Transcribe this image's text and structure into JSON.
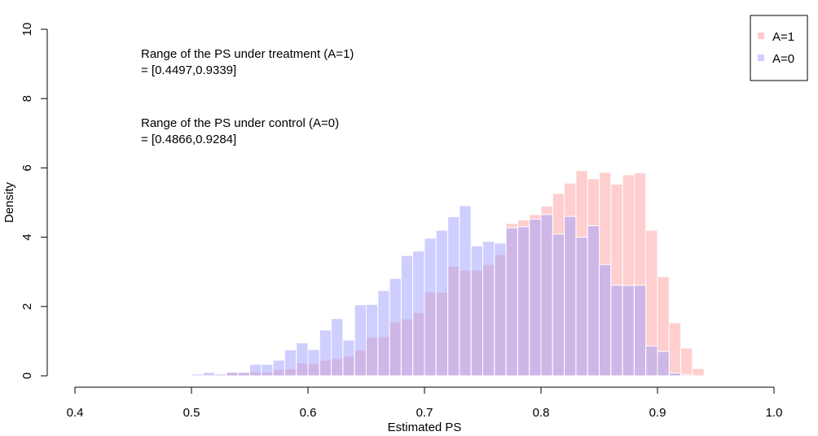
{
  "chart_data": {
    "type": "bar",
    "title": "",
    "xlabel": "Estimated PS",
    "ylabel": "Density",
    "xlim": [
      0.4,
      1.0
    ],
    "ylim": [
      0,
      10
    ],
    "x_ticks": [
      "0.4",
      "0.5",
      "0.6",
      "0.7",
      "0.8",
      "0.9",
      "1.0"
    ],
    "x_tick_values": [
      0.4,
      0.5,
      0.6,
      0.7,
      0.8,
      0.9,
      1.0
    ],
    "y_ticks": [
      "0",
      "2",
      "4",
      "6",
      "8",
      "10"
    ],
    "y_tick_values": [
      0,
      2,
      4,
      6,
      8,
      10
    ],
    "grid": false,
    "bin_width": 0.01,
    "bin_starts": [
      0.48,
      0.49,
      0.5,
      0.51,
      0.52,
      0.53,
      0.54,
      0.55,
      0.56,
      0.57,
      0.58,
      0.59,
      0.6,
      0.61,
      0.62,
      0.63,
      0.64,
      0.65,
      0.66,
      0.67,
      0.68,
      0.69,
      0.7,
      0.71,
      0.72,
      0.73,
      0.74,
      0.75,
      0.76,
      0.77,
      0.78,
      0.79,
      0.8,
      0.81,
      0.82,
      0.83,
      0.84,
      0.85,
      0.86,
      0.87,
      0.88,
      0.89,
      0.9,
      0.91,
      0.92,
      0.93
    ],
    "series": [
      {
        "name": "A=1",
        "color": "#ff9e9e",
        "opacity": 0.5,
        "values": [
          0.01,
          0.0,
          0.02,
          0.03,
          0.03,
          0.1,
          0.1,
          0.12,
          0.11,
          0.18,
          0.2,
          0.37,
          0.35,
          0.45,
          0.5,
          0.57,
          0.74,
          1.11,
          1.13,
          1.55,
          1.64,
          1.82,
          2.42,
          2.41,
          3.16,
          3.05,
          3.05,
          3.21,
          3.5,
          4.4,
          4.5,
          4.65,
          4.9,
          5.26,
          5.56,
          5.92,
          5.69,
          5.87,
          5.53,
          5.8,
          5.86,
          4.2,
          2.86,
          1.53,
          0.8,
          0.21
        ]
      },
      {
        "name": "A=0",
        "color": "#9e9eff",
        "opacity": 0.5,
        "values": [
          0.0,
          0.0,
          0.05,
          0.1,
          0.05,
          0.1,
          0.1,
          0.33,
          0.33,
          0.45,
          0.75,
          0.95,
          0.76,
          1.32,
          1.65,
          1.03,
          2.05,
          2.06,
          2.46,
          2.81,
          3.47,
          3.6,
          3.97,
          4.2,
          4.59,
          4.91,
          3.75,
          3.88,
          3.83,
          4.27,
          4.3,
          4.52,
          4.65,
          4.09,
          4.6,
          4.0,
          4.33,
          3.21,
          2.61,
          2.61,
          2.61,
          0.86,
          0.7,
          0.08,
          0.03,
          0.0
        ]
      }
    ],
    "legend": {
      "position": "top-right",
      "entries": [
        {
          "label": "A=1",
          "color": "#ff9e9e"
        },
        {
          "label": "A=0",
          "color": "#9e9eff"
        }
      ]
    },
    "annotations": [
      {
        "lines": [
          "Range of the PS under treatment (A=1)",
          "= [0.4497,0.9339]"
        ]
      },
      {
        "lines": [
          "Range of the PS under control (A=0)",
          "= [0.4866,0.9284]"
        ]
      }
    ]
  }
}
